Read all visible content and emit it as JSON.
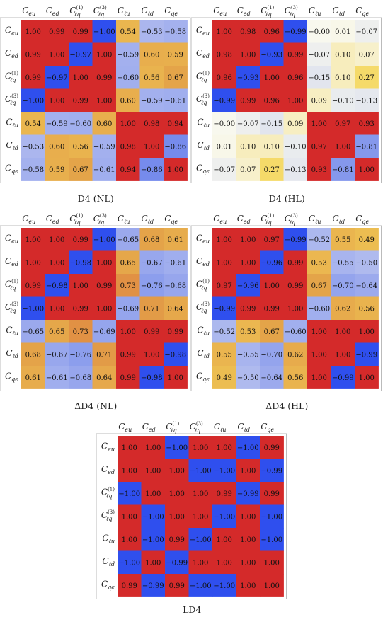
{
  "chart_data": [
    {
      "type": "heatmap",
      "title": "D4 (NL)",
      "row_labels": [
        "eu",
        "ed",
        "lq1",
        "lq3",
        "lu",
        "ld",
        "qe"
      ],
      "col_labels": [
        "eu",
        "ed",
        "lq1",
        "lq3",
        "lu",
        "ld",
        "qe"
      ],
      "values": [
        [
          1.0,
          0.99,
          0.99,
          -1.0,
          0.54,
          -0.53,
          -0.58
        ],
        [
          0.99,
          1.0,
          -0.97,
          1.0,
          -0.59,
          0.6,
          0.59
        ],
        [
          0.99,
          -0.97,
          1.0,
          0.99,
          -0.6,
          0.56,
          0.67
        ],
        [
          -1.0,
          1.0,
          0.99,
          1.0,
          0.6,
          -0.59,
          -0.61
        ],
        [
          0.54,
          -0.59,
          -0.6,
          0.6,
          1.0,
          0.98,
          0.94
        ],
        [
          -0.53,
          0.6,
          0.56,
          -0.59,
          0.98,
          1.0,
          -0.86
        ],
        [
          -0.58,
          0.59,
          0.67,
          -0.61,
          0.94,
          -0.86,
          1.0
        ]
      ],
      "labels": [
        [
          "1.00",
          "0.99",
          "0.99",
          "−1.00",
          "0.54",
          "−0.53",
          "−0.58"
        ],
        [
          "0.99",
          "1.00",
          "−0.97",
          "1.00",
          "−0.59",
          "0.60",
          "0.59"
        ],
        [
          "0.99",
          "−0.97",
          "1.00",
          "0.99",
          "−0.60",
          "0.56",
          "0.67"
        ],
        [
          "−1.00",
          "1.00",
          "0.99",
          "1.00",
          "0.60",
          "−0.59",
          "−0.61"
        ],
        [
          "0.54",
          "−0.59",
          "−0.60",
          "0.60",
          "1.00",
          "0.98",
          "0.94"
        ],
        [
          "−0.53",
          "0.60",
          "0.56",
          "−0.59",
          "0.98",
          "1.00",
          "−0.86"
        ],
        [
          "−0.58",
          "0.59",
          "0.67",
          "−0.61",
          "0.94",
          "−0.86",
          "1.00"
        ]
      ]
    },
    {
      "type": "heatmap",
      "title": "D4 (HL)",
      "row_labels": [
        "eu",
        "ed",
        "lq1",
        "lq3",
        "lu",
        "ld",
        "qe"
      ],
      "col_labels": [
        "eu",
        "ed",
        "lq1",
        "lq3",
        "lu",
        "ld",
        "qe"
      ],
      "values": [
        [
          1.0,
          0.98,
          0.96,
          -0.99,
          -0.0,
          0.01,
          -0.07
        ],
        [
          0.98,
          1.0,
          -0.93,
          0.99,
          -0.07,
          0.1,
          0.07
        ],
        [
          0.96,
          -0.93,
          1.0,
          0.96,
          -0.15,
          0.1,
          0.27
        ],
        [
          -0.99,
          0.99,
          0.96,
          1.0,
          0.09,
          -0.1,
          -0.13
        ],
        [
          -0.0,
          -0.07,
          -0.15,
          0.09,
          1.0,
          0.97,
          0.93
        ],
        [
          0.01,
          0.1,
          0.1,
          -0.1,
          0.97,
          1.0,
          -0.81
        ],
        [
          -0.07,
          0.07,
          0.27,
          -0.13,
          0.93,
          -0.81,
          1.0
        ]
      ],
      "labels": [
        [
          "1.00",
          "0.98",
          "0.96",
          "−0.99",
          "−0.00",
          "0.01",
          "−0.07"
        ],
        [
          "0.98",
          "1.00",
          "−0.93",
          "0.99",
          "−0.07",
          "0.10",
          "0.07"
        ],
        [
          "0.96",
          "−0.93",
          "1.00",
          "0.96",
          "−0.15",
          "0.10",
          "0.27"
        ],
        [
          "−0.99",
          "0.99",
          "0.96",
          "1.00",
          "0.09",
          "−0.10",
          "−0.13"
        ],
        [
          "−0.00",
          "−0.07",
          "−0.15",
          "0.09",
          "1.00",
          "0.97",
          "0.93"
        ],
        [
          "0.01",
          "0.10",
          "0.10",
          "−0.10",
          "0.97",
          "1.00",
          "−0.81"
        ],
        [
          "−0.07",
          "0.07",
          "0.27",
          "−0.13",
          "0.93",
          "−0.81",
          "1.00"
        ]
      ]
    },
    {
      "type": "heatmap",
      "title": "ΔD4 (NL)",
      "row_labels": [
        "eu",
        "ed",
        "lq1",
        "lq3",
        "lu",
        "ld",
        "qe"
      ],
      "col_labels": [
        "eu",
        "ed",
        "lq1",
        "lq3",
        "lu",
        "ld",
        "qe"
      ],
      "values": [
        [
          1.0,
          1.0,
          0.99,
          -1.0,
          -0.65,
          0.68,
          0.61
        ],
        [
          1.0,
          1.0,
          -0.98,
          1.0,
          0.65,
          -0.67,
          -0.61
        ],
        [
          0.99,
          -0.98,
          1.0,
          0.99,
          0.73,
          -0.76,
          -0.68
        ],
        [
          -1.0,
          1.0,
          0.99,
          1.0,
          -0.69,
          0.71,
          0.64
        ],
        [
          -0.65,
          0.65,
          0.73,
          -0.69,
          1.0,
          0.99,
          0.99
        ],
        [
          0.68,
          -0.67,
          -0.76,
          0.71,
          0.99,
          1.0,
          -0.98
        ],
        [
          0.61,
          -0.61,
          -0.68,
          0.64,
          0.99,
          -0.98,
          1.0
        ]
      ],
      "labels": [
        [
          "1.00",
          "1.00",
          "0.99",
          "−1.00",
          "−0.65",
          "0.68",
          "0.61"
        ],
        [
          "1.00",
          "1.00",
          "−0.98",
          "1.00",
          "0.65",
          "−0.67",
          "−0.61"
        ],
        [
          "0.99",
          "−0.98",
          "1.00",
          "0.99",
          "0.73",
          "−0.76",
          "−0.68"
        ],
        [
          "−1.00",
          "1.00",
          "0.99",
          "1.00",
          "−0.69",
          "0.71",
          "0.64"
        ],
        [
          "−0.65",
          "0.65",
          "0.73",
          "−0.69",
          "1.00",
          "0.99",
          "0.99"
        ],
        [
          "0.68",
          "−0.67",
          "−0.76",
          "0.71",
          "0.99",
          "1.00",
          "−0.98"
        ],
        [
          "0.61",
          "−0.61",
          "−0.68",
          "0.64",
          "0.99",
          "−0.98",
          "1.00"
        ]
      ]
    },
    {
      "type": "heatmap",
      "title": "ΔD4 (HL)",
      "row_labels": [
        "eu",
        "ed",
        "lq1",
        "lq3",
        "lu",
        "ld",
        "qe"
      ],
      "col_labels": [
        "eu",
        "ed",
        "lq1",
        "lq3",
        "lu",
        "ld",
        "qe"
      ],
      "values": [
        [
          1.0,
          1.0,
          0.97,
          -0.99,
          -0.52,
          0.55,
          0.49
        ],
        [
          1.0,
          1.0,
          -0.96,
          0.99,
          0.53,
          -0.55,
          -0.5
        ],
        [
          0.97,
          -0.96,
          1.0,
          0.99,
          0.67,
          -0.7,
          -0.64
        ],
        [
          -0.99,
          0.99,
          0.99,
          1.0,
          -0.6,
          0.62,
          0.56
        ],
        [
          -0.52,
          0.53,
          0.67,
          -0.6,
          1.0,
          1.0,
          1.0
        ],
        [
          0.55,
          -0.55,
          -0.7,
          0.62,
          1.0,
          1.0,
          -0.99
        ],
        [
          0.49,
          -0.5,
          -0.64,
          0.56,
          1.0,
          -0.99,
          1.0
        ]
      ],
      "labels": [
        [
          "1.00",
          "1.00",
          "0.97",
          "−0.99",
          "−0.52",
          "0.55",
          "0.49"
        ],
        [
          "1.00",
          "1.00",
          "−0.96",
          "0.99",
          "0.53",
          "−0.55",
          "−0.50"
        ],
        [
          "0.97",
          "−0.96",
          "1.00",
          "0.99",
          "0.67",
          "−0.70",
          "−0.64"
        ],
        [
          "−0.99",
          "0.99",
          "0.99",
          "1.00",
          "−0.60",
          "0.62",
          "0.56"
        ],
        [
          "−0.52",
          "0.53",
          "0.67",
          "−0.60",
          "1.00",
          "1.00",
          "1.00"
        ],
        [
          "0.55",
          "−0.55",
          "−0.70",
          "0.62",
          "1.00",
          "1.00",
          "−0.99"
        ],
        [
          "0.49",
          "−0.50",
          "−0.64",
          "0.56",
          "1.00",
          "−0.99",
          "1.00"
        ]
      ]
    },
    {
      "type": "heatmap",
      "title": "LD4",
      "row_labels": [
        "eu",
        "ed",
        "lq1",
        "lq3",
        "lu",
        "ld",
        "qe"
      ],
      "col_labels": [
        "eu",
        "ed",
        "lq1",
        "lq3",
        "lu",
        "ld",
        "qe"
      ],
      "values": [
        [
          1.0,
          1.0,
          -1.0,
          1.0,
          1.0,
          -1.0,
          0.99
        ],
        [
          1.0,
          1.0,
          1.0,
          -1.0,
          -1.0,
          1.0,
          -0.99
        ],
        [
          -1.0,
          1.0,
          1.0,
          1.0,
          0.99,
          -0.99,
          0.99
        ],
        [
          1.0,
          -1.0,
          1.0,
          1.0,
          -1.0,
          1.0,
          -1.0
        ],
        [
          1.0,
          -1.0,
          0.99,
          -1.0,
          1.0,
          1.0,
          -1.0
        ],
        [
          -1.0,
          1.0,
          -0.99,
          1.0,
          1.0,
          1.0,
          1.0
        ],
        [
          0.99,
          -0.99,
          0.99,
          -1.0,
          -1.0,
          1.0,
          1.0
        ]
      ],
      "labels": [
        [
          "1.00",
          "1.00",
          "−1.00",
          "1.00",
          "1.00",
          "−1.00",
          "0.99"
        ],
        [
          "1.00",
          "1.00",
          "1.00",
          "−1.00",
          "−1.00",
          "1.00",
          "−0.99"
        ],
        [
          "−1.00",
          "1.00",
          "1.00",
          "1.00",
          "0.99",
          "−0.99",
          "0.99"
        ],
        [
          "1.00",
          "−1.00",
          "1.00",
          "1.00",
          "−1.00",
          "1.00",
          "−1.00"
        ],
        [
          "1.00",
          "−1.00",
          "0.99",
          "−1.00",
          "1.00",
          "1.00",
          "−1.00"
        ],
        [
          "−1.00",
          "1.00",
          "−0.99",
          "1.00",
          "1.00",
          "1.00",
          "1.00"
        ],
        [
          "0.99",
          "−0.99",
          "0.99",
          "−1.00",
          "−1.00",
          "1.00",
          "1.00"
        ]
      ]
    }
  ],
  "symbols": {
    "eu": {
      "base": "C",
      "sub": "eu",
      "sup": ""
    },
    "ed": {
      "base": "C",
      "sub": "ed",
      "sup": ""
    },
    "lq1": {
      "base": "C",
      "sub": "ℓq",
      "sup": "(1)"
    },
    "lq3": {
      "base": "C",
      "sub": "ℓq",
      "sup": "(3)"
    },
    "lu": {
      "base": "C",
      "sub": "ℓu",
      "sup": ""
    },
    "ld": {
      "base": "C",
      "sub": "ℓd",
      "sup": ""
    },
    "qe": {
      "base": "C",
      "sub": "qe",
      "sup": ""
    }
  },
  "colors": {
    "red": "#d42a2a",
    "orange": "#e3a048",
    "yellow": "#f5d75a",
    "pale": "#f8f8ee",
    "lightblue": "#a8b4ee",
    "blue": "#2f4fee",
    "frame": "#bbbbbb"
  }
}
